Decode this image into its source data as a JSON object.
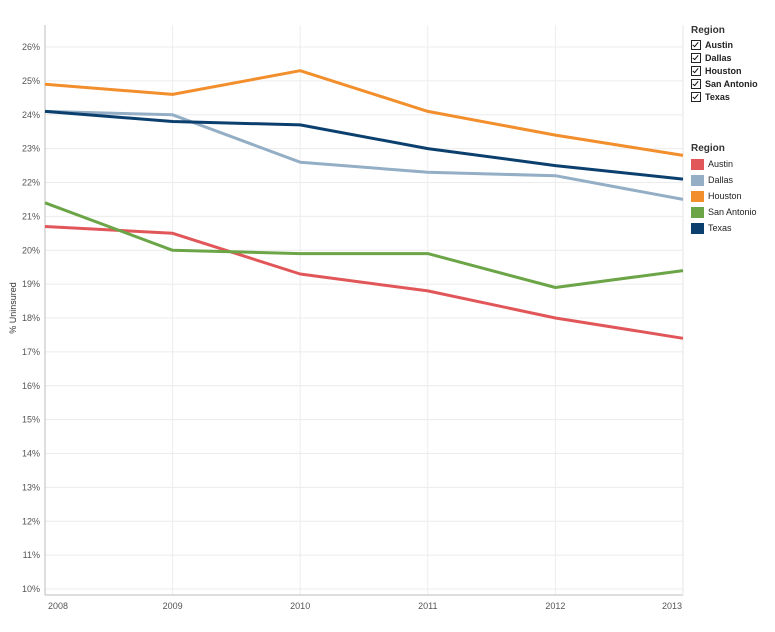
{
  "filter": {
    "title": "Region",
    "items": [
      "Austin",
      "Dallas",
      "Houston",
      "San Antonio",
      "Texas"
    ]
  },
  "legend": {
    "title": "Region",
    "items": [
      {
        "label": "Austin",
        "color": "#e15759"
      },
      {
        "label": "Dallas",
        "color": "#93aec5"
      },
      {
        "label": "Houston",
        "color": "#f28e2b"
      },
      {
        "label": "San Antonio",
        "color": "#6ba547"
      },
      {
        "label": "Texas",
        "color": "#0b3f6d"
      }
    ]
  },
  "chart_data": {
    "type": "line",
    "title": "",
    "xlabel": "",
    "ylabel": "% Uninsured",
    "x": [
      2008,
      2009,
      2010,
      2011,
      2012,
      2013
    ],
    "ylim": [
      10,
      26.5
    ],
    "yticks": [
      10,
      11,
      12,
      13,
      14,
      15,
      16,
      17,
      18,
      19,
      20,
      21,
      22,
      23,
      24,
      25,
      26
    ],
    "ytick_labels": [
      "10%",
      "11%",
      "12%",
      "13%",
      "14%",
      "15%",
      "16%",
      "17%",
      "18%",
      "19%",
      "20%",
      "21%",
      "22%",
      "23%",
      "24%",
      "25%",
      "26%"
    ],
    "grid": true,
    "legend_position": "right",
    "series": [
      {
        "name": "Austin",
        "color": "#e15759",
        "values": [
          20.7,
          20.5,
          19.3,
          18.8,
          18.0,
          17.4
        ]
      },
      {
        "name": "Dallas",
        "color": "#93aec5",
        "values": [
          24.1,
          24.0,
          22.6,
          22.3,
          22.2,
          21.5
        ]
      },
      {
        "name": "Houston",
        "color": "#f28e2b",
        "values": [
          24.9,
          24.6,
          25.3,
          24.1,
          23.4,
          22.8
        ]
      },
      {
        "name": "San Antonio",
        "color": "#6ba547",
        "values": [
          21.4,
          20.0,
          19.9,
          19.9,
          18.9,
          19.4
        ]
      },
      {
        "name": "Texas",
        "color": "#0b3f6d",
        "values": [
          24.1,
          23.8,
          23.7,
          23.0,
          22.5,
          22.1
        ]
      }
    ]
  }
}
